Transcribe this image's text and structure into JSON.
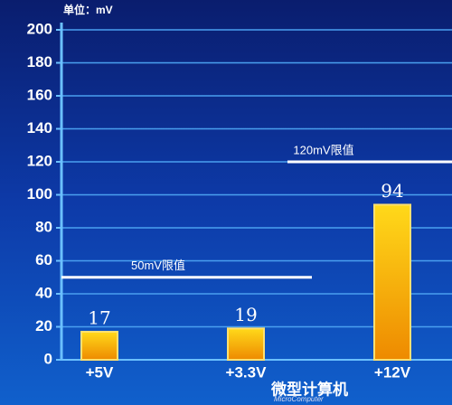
{
  "chart_data": {
    "type": "bar",
    "unit_label": "单位：mV",
    "categories": [
      "+5V",
      "+3.3V",
      "+12V"
    ],
    "values": [
      17,
      19,
      94
    ],
    "color": "#f5a500",
    "ylim": [
      0,
      200
    ],
    "yticks": [
      0,
      20,
      40,
      60,
      80,
      100,
      120,
      140,
      160,
      180,
      200
    ],
    "grid": true,
    "reference_lines": [
      {
        "value": 50,
        "label": "50mV限值"
      },
      {
        "value": 120,
        "label": "120mV限值"
      }
    ],
    "watermark": [
      "微型计算机",
      "MicroComputer"
    ]
  }
}
